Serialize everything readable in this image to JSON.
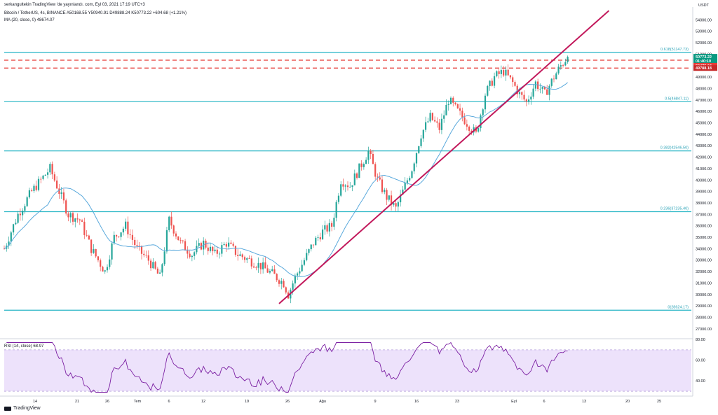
{
  "header": {
    "publisher": "serkangultekin TradingView 'de yayınlandı. com, Eyl 03, 2021 17:19 UTC+3",
    "symbol_line": "Bitcoin / TetherUS, 4s, BINANCE  A50168.55  Y50940.91  D49888.24  K50773.22  +604.68 (+1.21%)",
    "ma_line": "MA (20, close, 0)  48674.07",
    "rsi_line": "RSI (14, close)  68.97"
  },
  "footer": {
    "brand": "TradingView"
  },
  "colors": {
    "up": "#26a69a",
    "down": "#ef5350",
    "fib": "#26b5c5",
    "trendline": "#c2185b",
    "ma": "#5aa9dc",
    "rsi_line": "#7b1fa2",
    "rsi_band": "#ede2fb",
    "dashed": "#e53935"
  },
  "chart_data": [
    {
      "type": "candlestick",
      "title": "Bitcoin / TetherUS, 4s, BINANCE",
      "y_unit": "USDT",
      "ylim": [
        26500,
        55000
      ],
      "y_ticks": [
        "27000.00",
        "28000.00",
        "29000.00",
        "30000.00",
        "31000.00",
        "32000.00",
        "33000.00",
        "34000.00",
        "35000.00",
        "36000.00",
        "37000.00",
        "38000.00",
        "39000.00",
        "40000.00",
        "41000.00",
        "42000.00",
        "43000.00",
        "44000.00",
        "45000.00",
        "46000.00",
        "47000.00",
        "48000.00",
        "49000.00",
        "50000.00",
        "51000.00",
        "52000.00",
        "53000.00",
        "54000.00"
      ],
      "x_ticks": [
        "14",
        "21",
        "26",
        "Tem",
        "6",
        "12",
        "19",
        "26",
        "Ağu",
        "9",
        "16",
        "23",
        "Eyl",
        "6",
        "13",
        "20",
        "25"
      ],
      "close_path": [
        [
          0,
          34000
        ],
        [
          6,
          37000
        ],
        [
          12,
          39000
        ],
        [
          20,
          41000
        ],
        [
          28,
          37000
        ],
        [
          33,
          36500
        ],
        [
          38,
          34000
        ],
        [
          44,
          32000
        ],
        [
          48,
          35000
        ],
        [
          53,
          36000
        ],
        [
          58,
          34000
        ],
        [
          63,
          33000
        ],
        [
          68,
          31500
        ],
        [
          72,
          36500
        ],
        [
          77,
          34500
        ],
        [
          82,
          33500
        ],
        [
          87,
          34500
        ],
        [
          92,
          33500
        ],
        [
          97,
          34500
        ],
        [
          102,
          33500
        ],
        [
          107,
          33000
        ],
        [
          112,
          32500
        ],
        [
          117,
          31800
        ],
        [
          122,
          31000
        ],
        [
          124,
          30000
        ],
        [
          127,
          31500
        ],
        [
          131,
          33000
        ],
        [
          135,
          34500
        ],
        [
          139,
          35500
        ],
        [
          143,
          36000
        ],
        [
          147,
          40000
        ],
        [
          151,
          39500
        ],
        [
          155,
          41000
        ],
        [
          159,
          42500
        ],
        [
          163,
          40000
        ],
        [
          167,
          38500
        ],
        [
          171,
          37500
        ],
        [
          174,
          39000
        ],
        [
          178,
          41000
        ],
        [
          182,
          44000
        ],
        [
          186,
          45500
        ],
        [
          190,
          44500
        ],
        [
          194,
          47000
        ],
        [
          198,
          46000
        ],
        [
          202,
          45000
        ],
        [
          206,
          44000
        ],
        [
          210,
          47500
        ],
        [
          214,
          49000
        ],
        [
          218,
          49500
        ],
        [
          222,
          48500
        ],
        [
          225,
          47500
        ],
        [
          228,
          46800
        ],
        [
          232,
          48500
        ],
        [
          236,
          47500
        ],
        [
          240,
          49000
        ],
        [
          243,
          50000
        ],
        [
          246,
          50773
        ]
      ],
      "ma": {
        "name": "MA (20, close, 0)",
        "last": 48674.07
      },
      "fib_levels": [
        {
          "label": "0.618(51147.73)",
          "value": 51147.73
        },
        {
          "label": "0.5(46847.11)",
          "value": 46847.11
        },
        {
          "label": "0.382(42546.50)",
          "value": 42546.5
        },
        {
          "label": "0.236(37235.40)",
          "value": 37235.4
        },
        {
          "label": "0(28624.17)",
          "value": 28624.17
        }
      ],
      "dashed_levels": [
        50475.04,
        49788.18
      ],
      "price_tags": [
        {
          "label": "50773.22",
          "value": 50773.22,
          "color": "#089981"
        },
        {
          "label": "01:40:10",
          "value": 50420,
          "color": "#089981"
        },
        {
          "label": "50475.04",
          "value": 49990,
          "color": "#e53935"
        },
        {
          "label": "49788.18",
          "value": 49788.18,
          "color": "#c62828"
        }
      ],
      "trendline": {
        "from": [
          120,
          29200
        ],
        "to": [
          264,
          54800
        ]
      }
    },
    {
      "type": "line",
      "title": "RSI (14, close)",
      "ylim": [
        28,
        78
      ],
      "y_ticks": [
        "80.00",
        "60.00",
        "40.00"
      ],
      "band": [
        30,
        70
      ],
      "last": 68.97
    }
  ]
}
